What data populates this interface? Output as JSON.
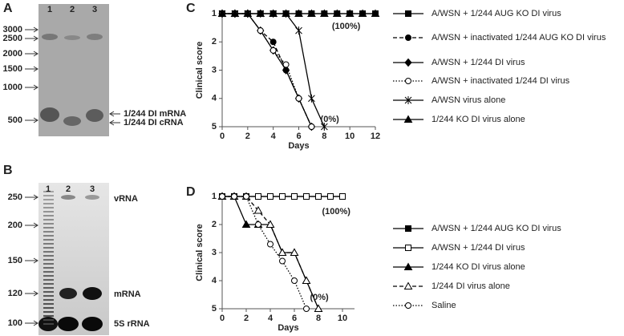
{
  "panels": {
    "A": "A",
    "B": "B",
    "C": "C",
    "D": "D"
  },
  "gels": [
    {
      "lanes": [
        "1",
        "2",
        "3"
      ],
      "sizes": [
        "3000",
        "2500",
        "2000",
        "1500",
        "1000",
        "500"
      ],
      "bands": [
        "1/244 DI mRNA",
        "1/244 DI cRNA"
      ]
    },
    {
      "lanes": [
        "1",
        "2",
        "3"
      ],
      "sizes": [
        "250",
        "200",
        "150",
        "120",
        "100"
      ],
      "bands": [
        "vRNA",
        "mRNA",
        "5S rRNA"
      ]
    }
  ],
  "chart_data": [
    {
      "type": "line",
      "xlabel": "Days",
      "ylabel": "Clinical score",
      "x": [
        0,
        1,
        2,
        3,
        4,
        5,
        6,
        7,
        8,
        9,
        10,
        11,
        12
      ],
      "xlim": [
        0,
        12
      ],
      "xticks": [
        0,
        2,
        4,
        6,
        8,
        10,
        12
      ],
      "ylim": [
        5,
        1
      ],
      "yticks": [
        1,
        2,
        3,
        4,
        5
      ],
      "annotations": [
        {
          "text": "(100%)",
          "x": 8.6,
          "y": 1.45
        },
        {
          "text": "(0%)",
          "x": 7.7,
          "y": 4.75
        }
      ],
      "series": [
        {
          "name": "A/WSN + 1/244 AUG KO DI virus",
          "color": "#000",
          "marker": "square",
          "linestyle": "solid",
          "values": [
            1,
            1,
            1,
            1,
            1,
            1,
            1,
            1,
            1,
            1,
            1,
            1,
            1
          ]
        },
        {
          "name": "A/WSN + inactivated 1/244 AUG KO DI virus",
          "color": "#000",
          "marker": "circle",
          "linestyle": "dashed",
          "values": [
            1,
            1,
            1,
            1.6,
            2,
            3,
            4,
            5,
            null,
            null,
            null,
            null,
            null
          ]
        },
        {
          "name": "A/WSN + 1/244 DI virus",
          "color": "#000",
          "marker": "diamond",
          "linestyle": "solid",
          "values": [
            1,
            1,
            1,
            1.6,
            2.3,
            3,
            4,
            5,
            null,
            null,
            null,
            null,
            null
          ]
        },
        {
          "name": "A/WSN + inactivated 1/244 DI virus",
          "color": "#000",
          "marker": "open-circle",
          "linestyle": "dotted",
          "values": [
            1,
            1,
            1,
            1.6,
            2.3,
            2.8,
            4,
            5,
            null,
            null,
            null,
            null,
            null
          ]
        },
        {
          "name": "A/WSN virus alone",
          "color": "#000",
          "marker": "star",
          "linestyle": "solid",
          "values": [
            1,
            1,
            1,
            1,
            1,
            1,
            1.6,
            4,
            5,
            null,
            null,
            null,
            null
          ]
        },
        {
          "name": "1/244 KO DI virus alone",
          "color": "#000",
          "marker": "triangle",
          "linestyle": "solid",
          "values": [
            1,
            1,
            1,
            1,
            1,
            1,
            1,
            1,
            1,
            1,
            1,
            1,
            1
          ]
        }
      ]
    },
    {
      "type": "line",
      "xlabel": "Days",
      "ylabel": "Clinical score",
      "x": [
        0,
        1,
        2,
        3,
        4,
        5,
        6,
        7,
        8,
        9,
        10
      ],
      "xlim": [
        0,
        11
      ],
      "xticks": [
        0,
        2,
        4,
        6,
        8,
        10
      ],
      "ylim": [
        5,
        1
      ],
      "yticks": [
        1,
        2,
        3,
        4,
        5
      ],
      "annotations": [
        {
          "text": "(100%)",
          "x": 8.3,
          "y": 1.55
        },
        {
          "text": "(0%)",
          "x": 7.3,
          "y": 4.6
        }
      ],
      "series": [
        {
          "name": "A/WSN + 1/244 AUG KO DI virus",
          "color": "#000",
          "marker": "square",
          "linestyle": "solid",
          "values": [
            1,
            1,
            1,
            1,
            1,
            1,
            1,
            1,
            1,
            1,
            1
          ]
        },
        {
          "name": "A/WSN + 1/244 DI virus",
          "color": "#000",
          "marker": "open-square",
          "linestyle": "solid",
          "values": [
            1,
            1,
            1,
            1,
            1,
            1,
            1,
            1,
            1,
            1,
            1
          ]
        },
        {
          "name": "1/244 KO DI virus alone",
          "color": "#000",
          "marker": "triangle",
          "linestyle": "solid",
          "values": [
            1,
            1,
            2,
            2,
            2,
            3,
            3,
            4,
            5,
            null,
            null
          ]
        },
        {
          "name": "1/244 DI virus alone",
          "color": "#000",
          "marker": "open-triangle",
          "linestyle": "dashed",
          "values": [
            1,
            1,
            1,
            1.5,
            2,
            3,
            3,
            4,
            5,
            null,
            null
          ]
        },
        {
          "name": "Saline",
          "color": "#000",
          "marker": "open-circle",
          "linestyle": "dotted",
          "values": [
            1,
            1,
            1,
            2,
            2.7,
            3.3,
            4,
            5,
            null,
            null,
            null
          ]
        }
      ]
    }
  ]
}
